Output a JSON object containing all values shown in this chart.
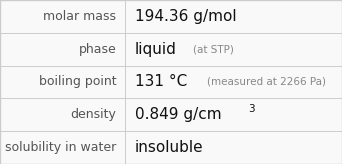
{
  "rows": [
    {
      "label": "molar mass",
      "main": "194.36 g/mol",
      "sup": "",
      "note": ""
    },
    {
      "label": "phase",
      "main": "liquid",
      "sup": "",
      "note": " (at STP)"
    },
    {
      "label": "boiling point",
      "main": "131 °C",
      "sup": "",
      "note": "  (measured at 2266 Pa)"
    },
    {
      "label": "density",
      "main": "0.849 g/cm",
      "sup": "3",
      "note": ""
    },
    {
      "label": "solubility in water",
      "main": "insoluble",
      "sup": "",
      "note": ""
    }
  ],
  "bg": "#f9f9f9",
  "line_color": "#cccccc",
  "label_color": "#555555",
  "value_color": "#111111",
  "note_color": "#888888",
  "col_split": 0.365,
  "label_fs": 9.0,
  "value_fs": 11.0,
  "note_fs": 7.5,
  "sup_fs": 7.5
}
